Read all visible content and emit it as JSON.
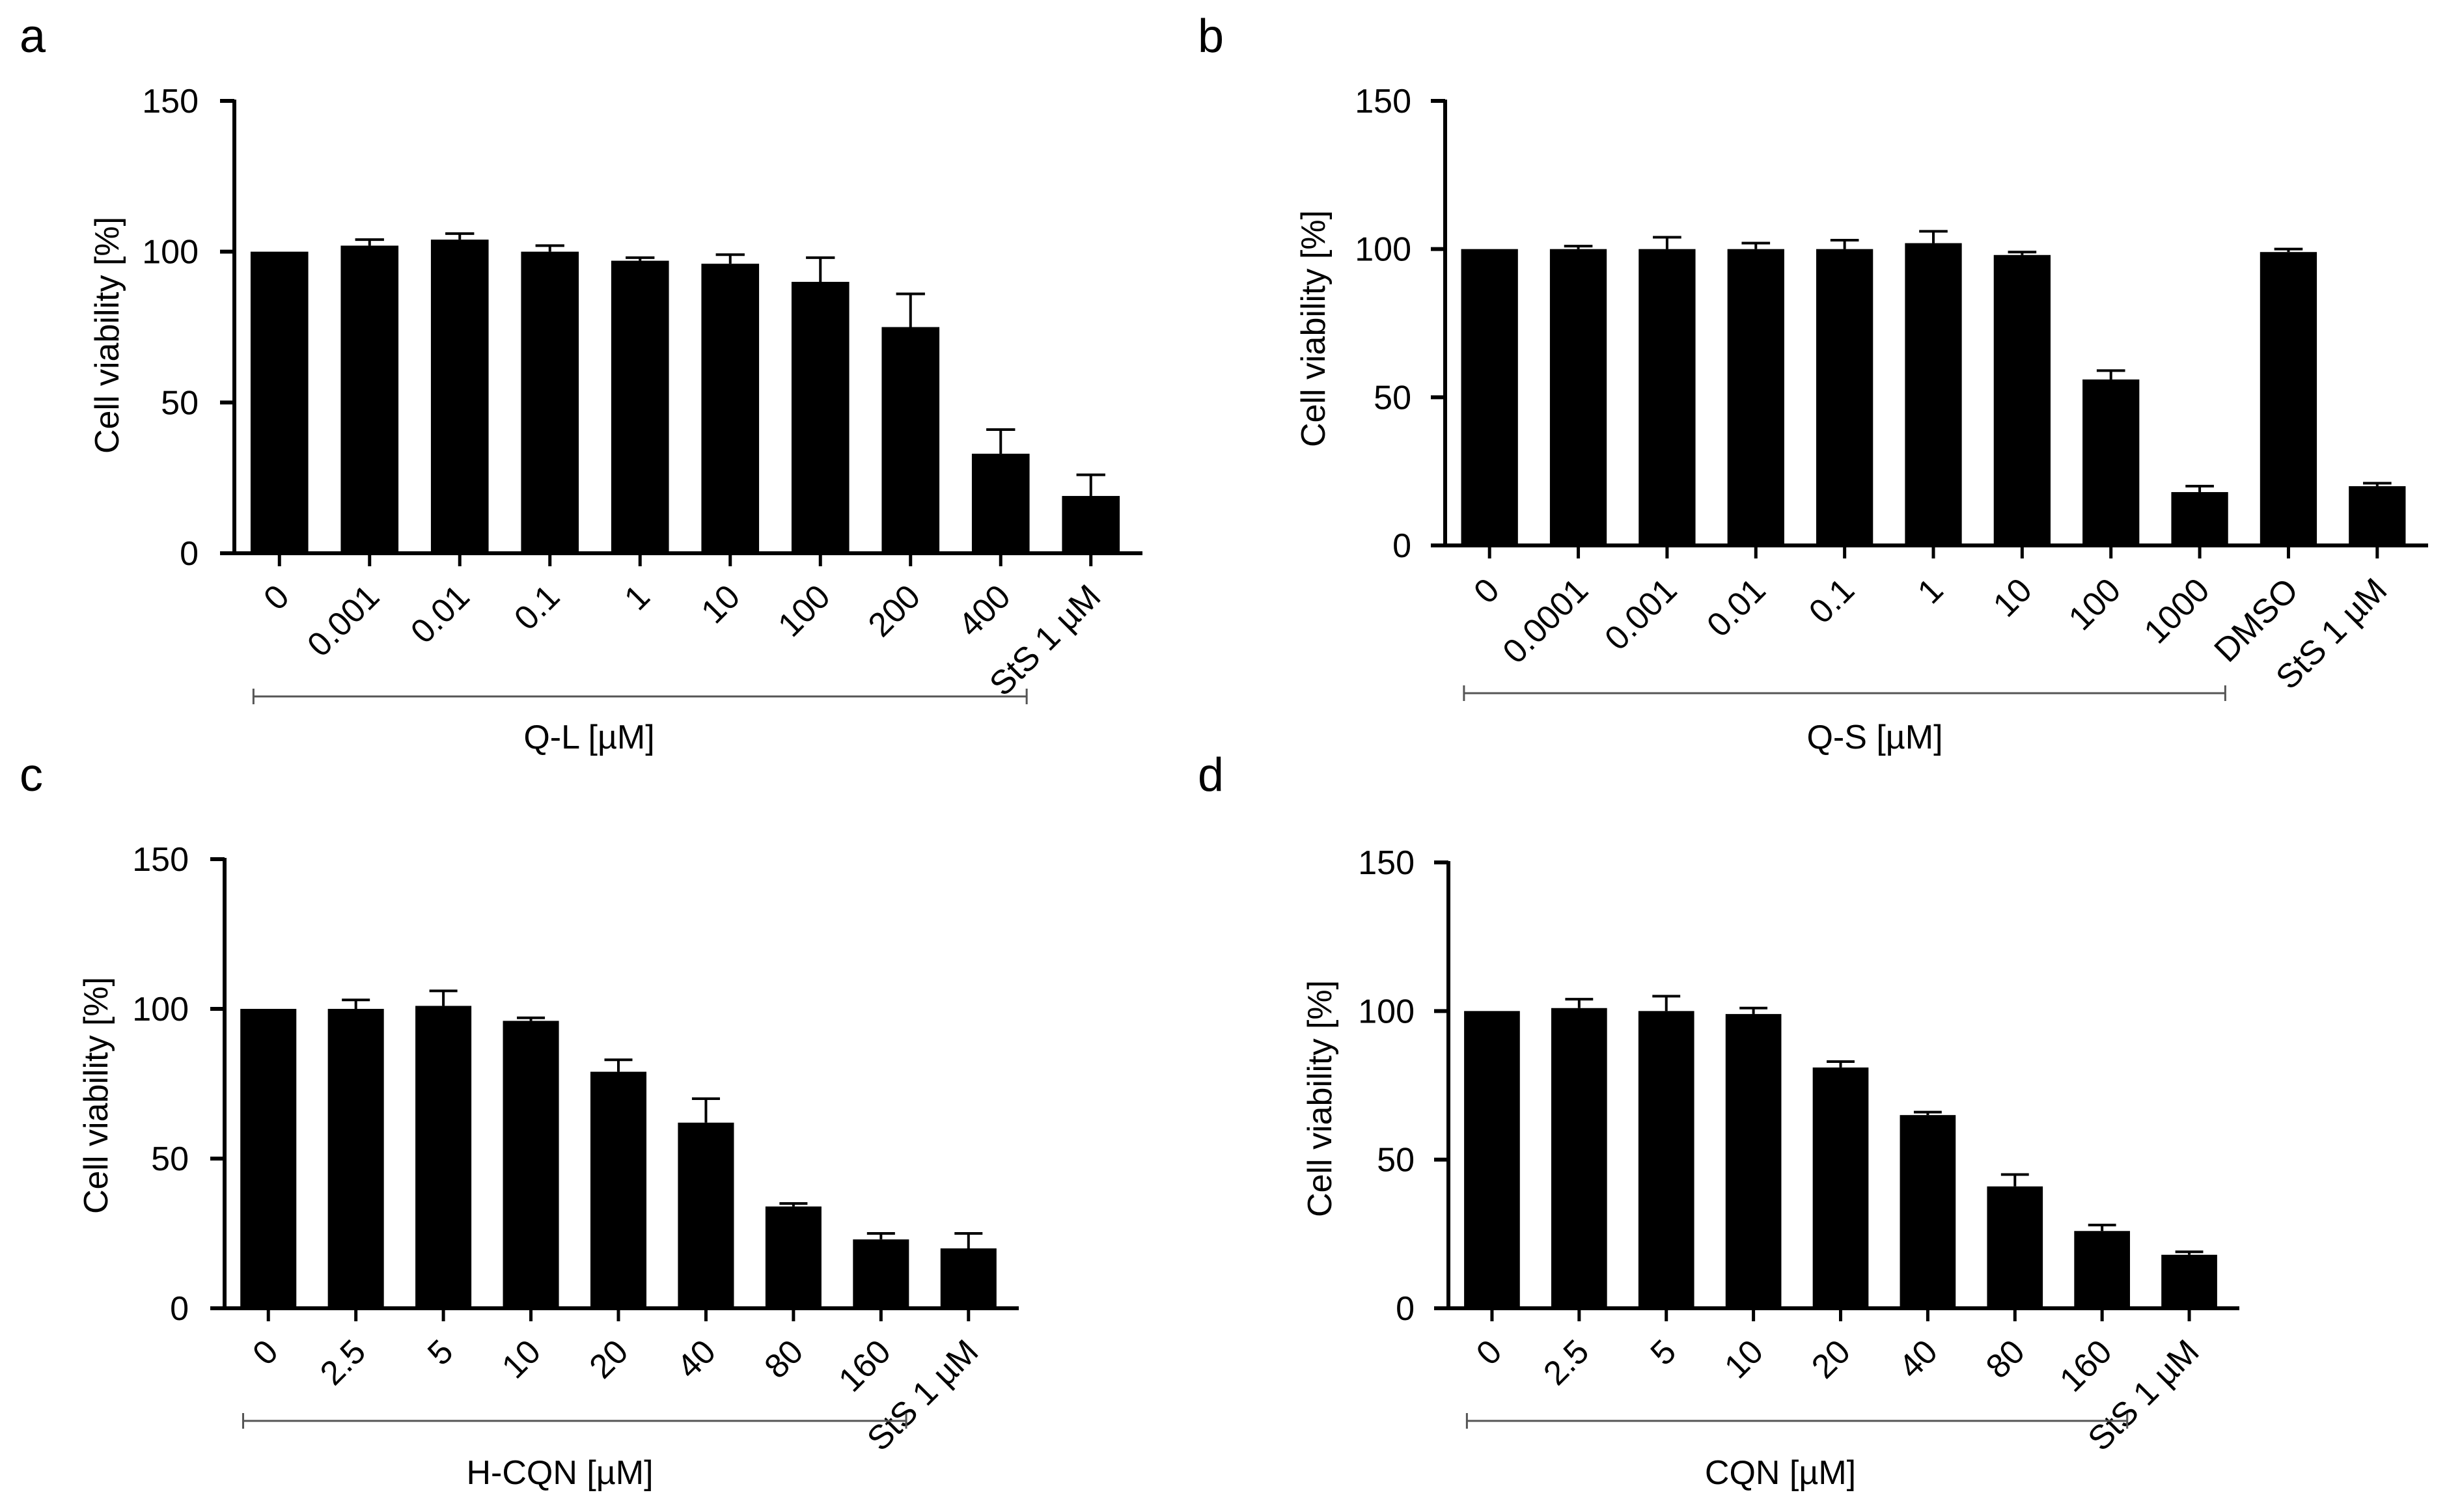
{
  "figure": {
    "background": "#ffffff",
    "bar_color": "#000000",
    "bracket_color": "#555555"
  },
  "chart_data": [
    {
      "panel": "a",
      "type": "bar",
      "ylabel": "Cell viability [%]",
      "ylim": [
        0,
        150
      ],
      "yticks": [
        0,
        50,
        100,
        150
      ],
      "categories": [
        "0",
        "0.001",
        "0.01",
        "0.1",
        "1",
        "10",
        "100",
        "200",
        "400",
        "StS 1 µM"
      ],
      "values": [
        100,
        102,
        104,
        100,
        97,
        96,
        90,
        75,
        33,
        19
      ],
      "errors": [
        0,
        2,
        2,
        2,
        1,
        3,
        8,
        11,
        8,
        7
      ],
      "group": {
        "label": "Q-L [µM]",
        "from": 0,
        "to": 8
      }
    },
    {
      "panel": "b",
      "type": "bar",
      "ylabel": "Cell viability [%]",
      "ylim": [
        0,
        150
      ],
      "yticks": [
        0,
        50,
        100,
        150
      ],
      "categories": [
        "0",
        "0.0001",
        "0.001",
        "0.01",
        "0.1",
        "1",
        "10",
        "100",
        "1000",
        "DMSO",
        "StS 1 µM"
      ],
      "values": [
        100,
        100,
        100,
        100,
        100,
        102,
        98,
        56,
        18,
        99,
        20
      ],
      "errors": [
        0,
        1,
        4,
        2,
        3,
        4,
        1,
        3,
        2,
        1,
        1
      ],
      "group": {
        "label": "Q-S [µM]",
        "from": 0,
        "to": 8
      }
    },
    {
      "panel": "c",
      "type": "bar",
      "ylabel": "Cell viability [%]",
      "ylim": [
        0,
        150
      ],
      "yticks": [
        0,
        50,
        100,
        150
      ],
      "categories": [
        "0",
        "2.5",
        "5",
        "10",
        "20",
        "40",
        "80",
        "160",
        "StS 1 µM"
      ],
      "values": [
        100,
        100,
        101,
        96,
        79,
        62,
        34,
        23,
        20
      ],
      "errors": [
        0,
        3,
        5,
        1,
        4,
        8,
        1,
        2,
        5
      ],
      "group": {
        "label": "H-CQN [µM]",
        "from": 0,
        "to": 7
      }
    },
    {
      "panel": "d",
      "type": "bar",
      "ylabel": "Cell viability [%]",
      "ylim": [
        0,
        150
      ],
      "yticks": [
        0,
        50,
        100,
        150
      ],
      "categories": [
        "0",
        "2.5",
        "5",
        "10",
        "20",
        "40",
        "80",
        "160",
        "StS 1 µM"
      ],
      "values": [
        100,
        101,
        100,
        99,
        81,
        65,
        41,
        26,
        18
      ],
      "errors": [
        0,
        3,
        5,
        2,
        2,
        1,
        4,
        2,
        1
      ],
      "group": {
        "label": "CQN [µM]",
        "from": 0,
        "to": 7
      }
    }
  ]
}
